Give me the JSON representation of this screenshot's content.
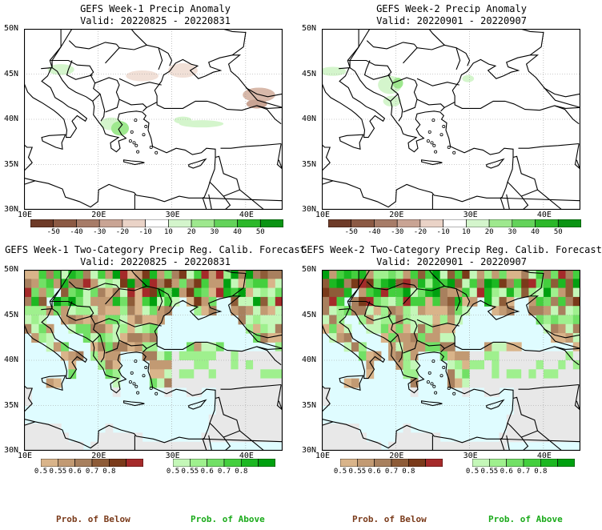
{
  "panels": [
    {
      "id": "p1",
      "title": "GEFS Week-1 Precip Anomaly",
      "valid": "Valid: 20220825 - 20220831",
      "kind": "anomaly"
    },
    {
      "id": "p2",
      "title": "GEFS Week-2 Precip Anomaly",
      "valid": "Valid: 20220901 - 20220907",
      "kind": "anomaly"
    },
    {
      "id": "p3",
      "title": "GEFS Week-1 Two-Category Precip Reg. Calib. Forecast",
      "valid": "Valid: 20220825 - 20220831",
      "kind": "prob"
    },
    {
      "id": "p4",
      "title": "GEFS Week-2 Two-Category Precip Reg. Calib. Forecast",
      "valid": "Valid: 20220901 - 20220907",
      "kind": "prob"
    }
  ],
  "axes": {
    "lat_labels": [
      "50N",
      "45N",
      "40N",
      "35N",
      "30N"
    ],
    "lon_labels": [
      "10E",
      "20E",
      "30E",
      "40E"
    ]
  },
  "anomaly_colorbar": {
    "labels": [
      "-50",
      "-40",
      "-30",
      "-20",
      "-10",
      "10",
      "20",
      "30",
      "40",
      "50"
    ],
    "colors": [
      "#6e3b28",
      "#8c5a44",
      "#a77c68",
      "#c9a494",
      "#ead3c7",
      "#ffffff",
      "#d4f5cc",
      "#9ee88e",
      "#63d35a",
      "#2cb82a",
      "#0b9414"
    ]
  },
  "prob_colorbar_below": {
    "labels": [
      "0.5",
      "0.55",
      "0.6",
      "0.7",
      "0.8"
    ],
    "colors": [
      "#d9b48a",
      "#c29a73",
      "#a8805e",
      "#8e5c38",
      "#7a3a1a",
      "#a52a2a"
    ]
  },
  "prob_colorbar_above": {
    "labels": [
      "0.5",
      "0.55",
      "0.6",
      "0.7",
      "0.8"
    ],
    "colors": [
      "#c4f7b8",
      "#9ff08e",
      "#72e066",
      "#44cf3e",
      "#1cb822",
      "#00a010"
    ]
  },
  "footer": {
    "below_label": "Prob. of Below",
    "above_label": "Prob. of Above",
    "below_color": "#7a3a1a",
    "above_color": "#1aaa1a"
  }
}
